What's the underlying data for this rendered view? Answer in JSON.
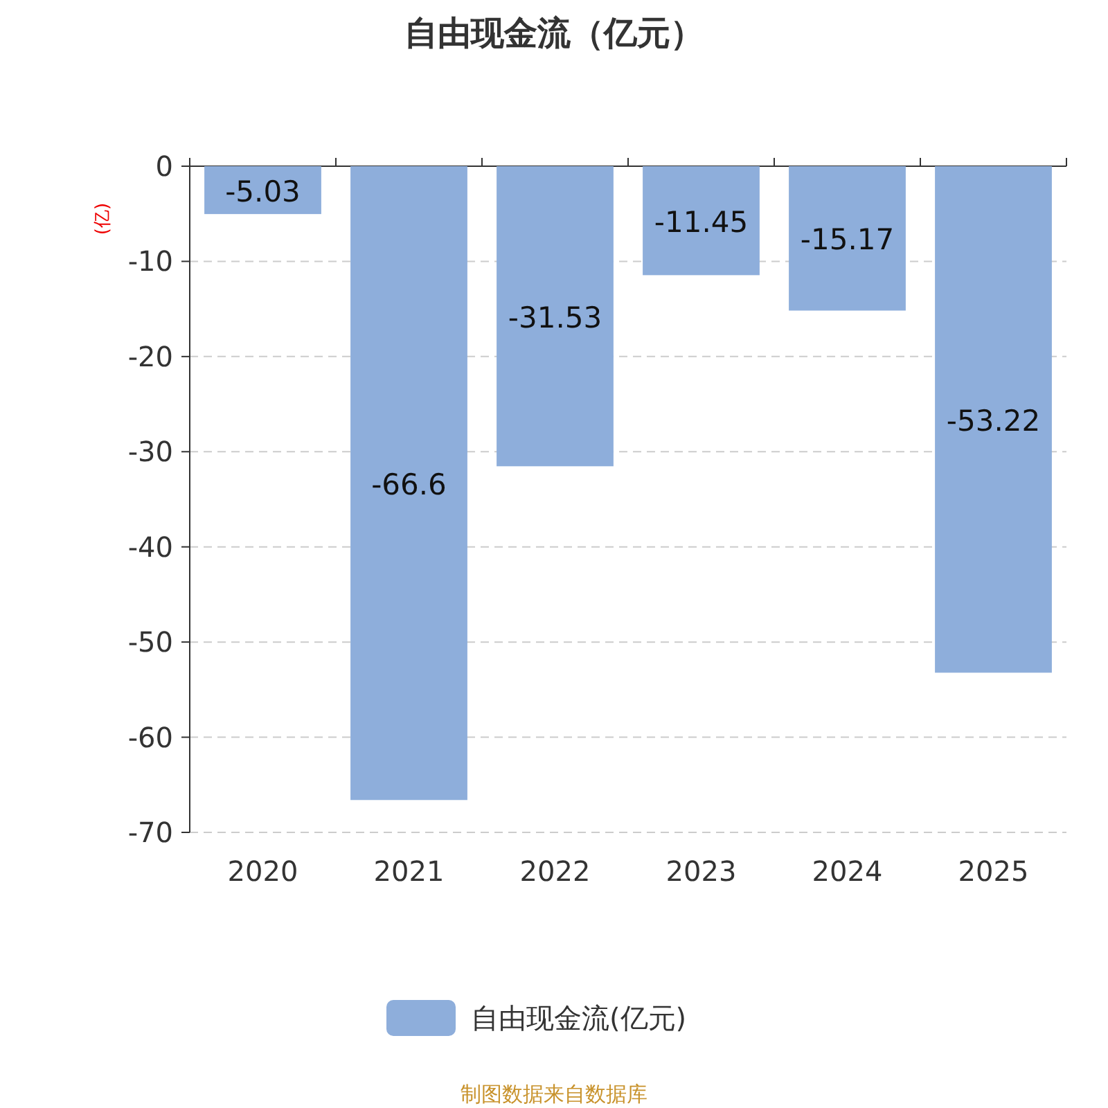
{
  "chart_data": {
    "type": "bar",
    "title": "自由现金流（亿元）",
    "ylabel": "(亿)",
    "categories": [
      "2020",
      "2021",
      "2022",
      "2023",
      "2024",
      "2025"
    ],
    "series": [
      {
        "name": "自由现金流(亿元)",
        "color": "#8eaedb",
        "values": [
          -5.03,
          -66.6,
          -31.53,
          -11.45,
          -15.17,
          -53.22
        ]
      }
    ],
    "ylim": [
      -70,
      0
    ],
    "yticks": [
      -70,
      -60,
      -50,
      -40,
      -30,
      -20,
      -10,
      0
    ],
    "grid": "y",
    "data_labels": true,
    "legend": "bottom",
    "annotations": [
      "制图数据来自数据库"
    ]
  }
}
